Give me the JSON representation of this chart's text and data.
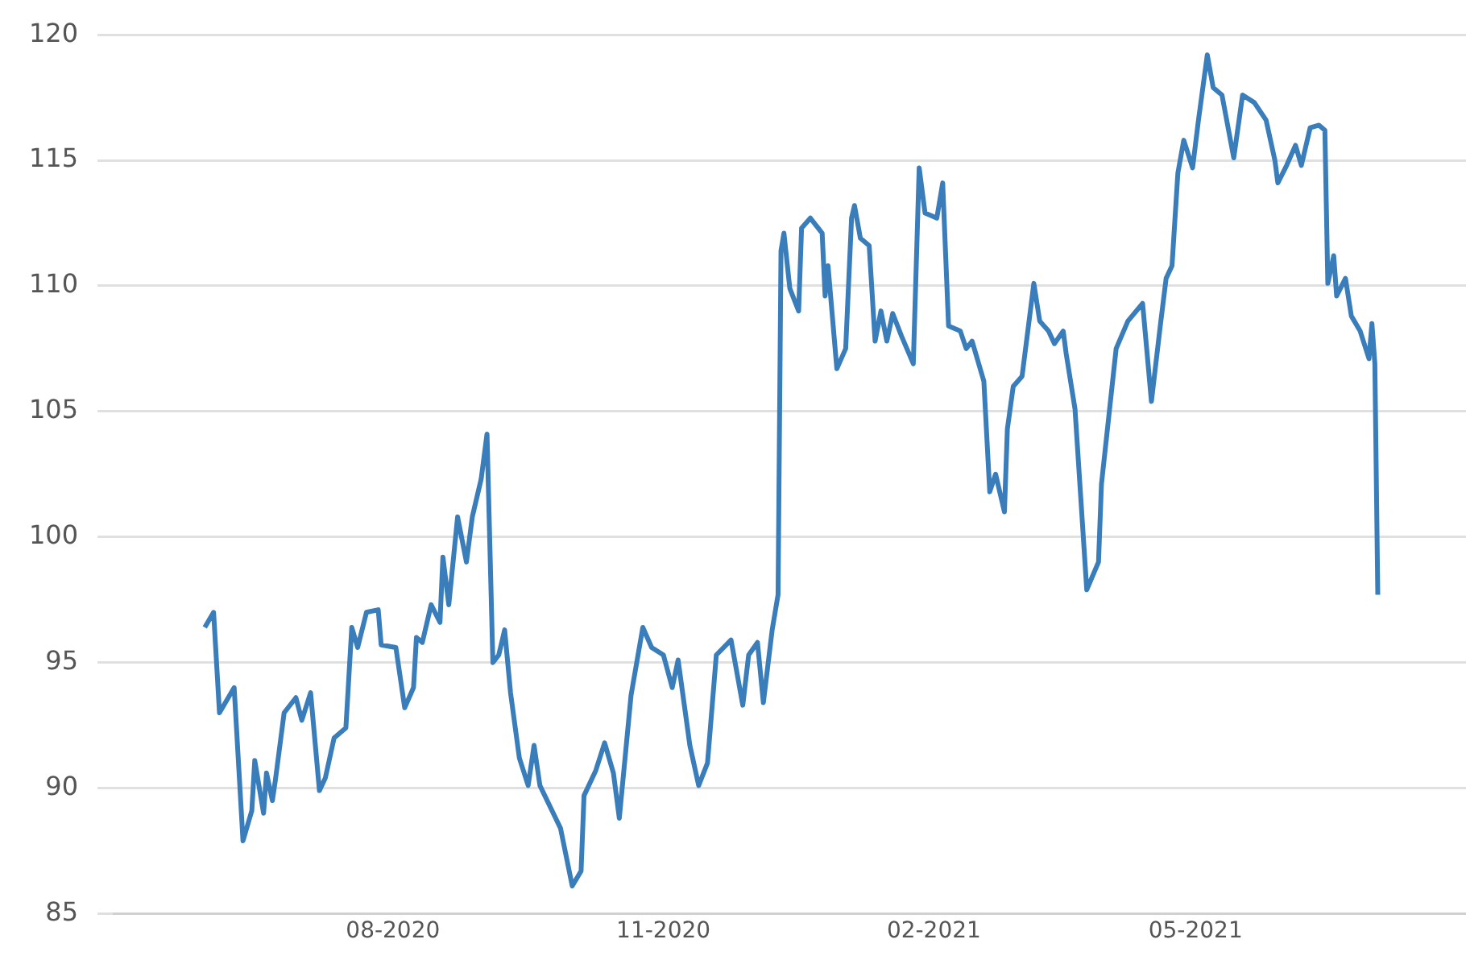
{
  "chart_data": {
    "type": "line",
    "x": [
      "2020-05-29",
      "2020-06-01",
      "2020-06-03",
      "2020-06-05",
      "2020-06-08",
      "2020-06-11",
      "2020-06-14",
      "2020-06-15",
      "2020-06-18",
      "2020-06-19",
      "2020-06-21",
      "2020-06-22",
      "2020-06-25",
      "2020-06-29",
      "2020-07-01",
      "2020-07-04",
      "2020-07-07",
      "2020-07-09",
      "2020-07-12",
      "2020-07-16",
      "2020-07-18",
      "2020-07-20",
      "2020-07-23",
      "2020-07-27",
      "2020-07-28",
      "2020-08-02",
      "2020-08-05",
      "2020-08-08",
      "2020-08-09",
      "2020-08-11",
      "2020-08-14",
      "2020-08-17",
      "2020-08-18",
      "2020-08-20",
      "2020-08-23",
      "2020-08-26",
      "2020-08-28",
      "2020-08-31",
      "2020-09-02",
      "2020-09-04",
      "2020-09-06",
      "2020-09-08",
      "2020-09-10",
      "2020-09-13",
      "2020-09-16",
      "2020-09-18",
      "2020-09-20",
      "2020-09-27",
      "2020-10-01",
      "2020-10-04",
      "2020-10-05",
      "2020-10-09",
      "2020-10-12",
      "2020-10-15",
      "2020-10-17",
      "2020-10-21",
      "2020-10-25",
      "2020-10-28",
      "2020-11-01",
      "2020-11-04",
      "2020-11-06",
      "2020-11-10",
      "2020-11-13",
      "2020-11-16",
      "2020-11-19",
      "2020-11-24",
      "2020-11-28",
      "2020-11-30",
      "2020-12-03",
      "2020-12-05",
      "2020-12-08",
      "2020-12-10",
      "2020-12-11",
      "2020-12-12",
      "2020-12-14",
      "2020-12-17",
      "2020-12-18",
      "2020-12-21",
      "2020-12-25",
      "2020-12-26",
      "2020-12-27",
      "2020-12-30",
      "2021-01-02",
      "2021-01-04",
      "2021-01-05",
      "2021-01-07",
      "2021-01-10",
      "2021-01-12",
      "2021-01-14",
      "2021-01-16",
      "2021-01-18",
      "2021-01-21",
      "2021-01-25",
      "2021-01-27",
      "2021-01-29",
      "2021-02-02",
      "2021-02-04",
      "2021-02-06",
      "2021-02-10",
      "2021-02-12",
      "2021-02-14",
      "2021-02-18",
      "2021-02-20",
      "2021-02-22",
      "2021-02-25",
      "2021-02-26",
      "2021-02-28",
      "2021-03-03",
      "2021-03-07",
      "2021-03-09",
      "2021-03-12",
      "2021-03-14",
      "2021-03-17",
      "2021-03-18",
      "2021-03-21",
      "2021-03-25",
      "2021-03-29",
      "2021-03-30",
      "2021-04-04",
      "2021-04-08",
      "2021-04-13",
      "2021-04-16",
      "2021-04-19",
      "2021-04-21",
      "2021-04-23",
      "2021-04-25",
      "2021-04-27",
      "2021-04-30",
      "2021-05-02",
      "2021-05-05",
      "2021-05-07",
      "2021-05-10",
      "2021-05-14",
      "2021-05-17",
      "2021-05-21",
      "2021-05-25",
      "2021-05-28",
      "2021-05-29",
      "2021-06-01",
      "2021-06-04",
      "2021-06-06",
      "2021-06-09",
      "2021-06-12",
      "2021-06-14",
      "2021-06-15",
      "2021-06-17",
      "2021-06-18",
      "2021-06-21",
      "2021-06-23",
      "2021-06-26",
      "2021-06-29",
      "2021-06-30",
      "2021-07-01",
      "2021-07-02"
    ],
    "series": [
      {
        "color": "#3a7dbb",
        "values": [
          96.4,
          97.0,
          93.0,
          93.4,
          94.0,
          87.9,
          89.1,
          91.1,
          89.0,
          90.6,
          89.5,
          90.3,
          93.0,
          93.6,
          92.7,
          93.8,
          89.9,
          90.4,
          92.0,
          92.4,
          96.4,
          95.6,
          97.0,
          97.1,
          95.7,
          95.6,
          93.2,
          94.0,
          96.0,
          95.8,
          97.3,
          96.6,
          99.2,
          97.3,
          100.8,
          99.0,
          100.8,
          102.3,
          104.1,
          95.0,
          95.3,
          96.3,
          93.8,
          91.2,
          90.1,
          91.7,
          90.1,
          88.4,
          86.1,
          86.7,
          89.7,
          90.7,
          91.8,
          90.6,
          88.8,
          93.7,
          96.4,
          95.6,
          95.3,
          94.0,
          95.1,
          91.7,
          90.1,
          91.0,
          95.3,
          95.9,
          93.3,
          95.3,
          95.8,
          93.4,
          96.3,
          97.7,
          111.4,
          112.1,
          109.9,
          109.0,
          112.3,
          112.7,
          112.1,
          109.6,
          110.8,
          106.7,
          107.5,
          112.7,
          113.2,
          111.9,
          111.6,
          107.8,
          109.0,
          107.8,
          108.9,
          108.0,
          106.9,
          114.7,
          112.9,
          112.7,
          114.1,
          108.4,
          108.2,
          107.5,
          107.8,
          106.2,
          101.8,
          102.5,
          101.0,
          104.3,
          106.0,
          106.4,
          110.1,
          108.6,
          108.2,
          107.7,
          108.2,
          107.3,
          105.1,
          97.9,
          99.0,
          102.1,
          107.5,
          108.6,
          109.3,
          105.4,
          108.4,
          110.3,
          110.8,
          114.5,
          115.8,
          114.7,
          116.6,
          119.2,
          117.9,
          117.6,
          115.1,
          117.6,
          117.3,
          116.6,
          115.0,
          114.1,
          114.8,
          115.6,
          114.8,
          116.3,
          116.4,
          116.2,
          110.1,
          111.2,
          109.6,
          110.3,
          108.8,
          108.2,
          107.1,
          108.5,
          106.9,
          97.7
        ]
      }
    ],
    "xlim": [
      "2020-04-28",
      "2021-08-01"
    ],
    "xticks": [
      {
        "value": "2020-08-01",
        "label": "08-2020"
      },
      {
        "value": "2020-11-01",
        "label": "11-2020"
      },
      {
        "value": "2021-02-01",
        "label": "02-2021"
      },
      {
        "value": "2021-05-01",
        "label": "05-2021"
      }
    ],
    "ylim": [
      85,
      120
    ],
    "yticks": [
      85,
      90,
      95,
      100,
      105,
      110,
      115,
      120
    ],
    "grid": "y",
    "legend": false,
    "marker": "none",
    "line_style": "solid"
  }
}
